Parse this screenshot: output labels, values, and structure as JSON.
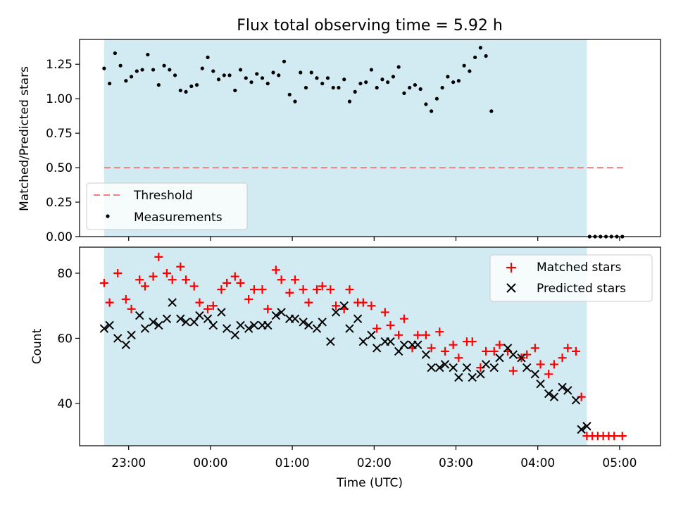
{
  "chart_data": [
    {
      "type": "scatter",
      "title": "Flux total observing time = 5.92 h",
      "xlabel": "",
      "ylabel": "Matched/Predicted stars",
      "ylim": [
        0,
        1.43
      ],
      "yticks": [
        "0.00",
        "0.25",
        "0.50",
        "0.75",
        "1.00",
        "1.25"
      ],
      "xlim_hours": [
        22.4,
        29.5
      ],
      "shaded_span": [
        "22:42",
        "04:36"
      ],
      "shaded_color": "#add8e6",
      "threshold": {
        "name": "Threshold",
        "value": 0.5,
        "x": [
          "22:42",
          "05:03"
        ],
        "color": "#f08080",
        "style": "dashed"
      },
      "series": [
        {
          "name": "Measurements",
          "marker": "dot",
          "color": "#000000",
          "points": [
            [
              "22:42",
              1.22
            ],
            [
              "22:46",
              1.11
            ],
            [
              "22:50",
              1.33
            ],
            [
              "22:54",
              1.24
            ],
            [
              "22:58",
              1.13
            ],
            [
              "23:02",
              1.16
            ],
            [
              "23:06",
              1.2
            ],
            [
              "23:10",
              1.21
            ],
            [
              "23:14",
              1.32
            ],
            [
              "23:18",
              1.21
            ],
            [
              "23:22",
              1.1
            ],
            [
              "23:26",
              1.24
            ],
            [
              "23:30",
              1.21
            ],
            [
              "23:34",
              1.17
            ],
            [
              "23:38",
              1.06
            ],
            [
              "23:42",
              1.05
            ],
            [
              "23:46",
              1.09
            ],
            [
              "23:50",
              1.1
            ],
            [
              "23:54",
              1.22
            ],
            [
              "23:58",
              1.3
            ],
            [
              "00:02",
              1.2
            ],
            [
              "00:06",
              1.14
            ],
            [
              "00:10",
              1.17
            ],
            [
              "00:14",
              1.17
            ],
            [
              "00:18",
              1.06
            ],
            [
              "00:22",
              1.21
            ],
            [
              "00:26",
              1.15
            ],
            [
              "00:30",
              1.12
            ],
            [
              "00:34",
              1.18
            ],
            [
              "00:38",
              1.15
            ],
            [
              "00:42",
              1.11
            ],
            [
              "00:46",
              1.19
            ],
            [
              "00:50",
              1.17
            ],
            [
              "00:54",
              1.27
            ],
            [
              "00:58",
              1.03
            ],
            [
              "01:02",
              0.98
            ],
            [
              "01:06",
              1.19
            ],
            [
              "01:10",
              1.08
            ],
            [
              "01:14",
              1.19
            ],
            [
              "01:18",
              1.15
            ],
            [
              "01:22",
              1.11
            ],
            [
              "01:26",
              1.15
            ],
            [
              "01:30",
              1.08
            ],
            [
              "01:34",
              1.08
            ],
            [
              "01:38",
              1.14
            ],
            [
              "01:42",
              0.98
            ],
            [
              "01:46",
              1.05
            ],
            [
              "01:50",
              1.11
            ],
            [
              "01:54",
              1.12
            ],
            [
              "01:58",
              1.21
            ],
            [
              "02:02",
              1.08
            ],
            [
              "02:06",
              1.14
            ],
            [
              "02:10",
              1.12
            ],
            [
              "02:14",
              1.16
            ],
            [
              "02:18",
              1.23
            ],
            [
              "02:22",
              1.04
            ],
            [
              "02:26",
              1.08
            ],
            [
              "02:30",
              1.1
            ],
            [
              "02:34",
              1.07
            ],
            [
              "02:38",
              0.96
            ],
            [
              "02:42",
              0.91
            ],
            [
              "02:46",
              1.0
            ],
            [
              "02:50",
              1.08
            ],
            [
              "02:54",
              1.16
            ],
            [
              "02:58",
              1.12
            ],
            [
              "03:02",
              1.13
            ],
            [
              "03:06",
              1.24
            ],
            [
              "03:10",
              1.2
            ],
            [
              "03:14",
              1.3
            ],
            [
              "03:18",
              1.37
            ],
            [
              "03:22",
              1.31
            ],
            [
              "03:26",
              0.91
            ],
            [
              "04:38",
              0.0
            ],
            [
              "04:42",
              0.0
            ],
            [
              "04:46",
              0.0
            ],
            [
              "04:50",
              0.0
            ],
            [
              "04:54",
              0.0
            ],
            [
              "04:58",
              0.0
            ],
            [
              "05:02",
              0.0
            ]
          ]
        }
      ],
      "legend": {
        "position": "lower-left",
        "entries": [
          "Threshold",
          "Measurements"
        ]
      }
    },
    {
      "type": "scatter",
      "title": "",
      "xlabel": "Time (UTC)",
      "ylabel": "Count",
      "ylim": [
        27,
        88
      ],
      "yticks": [
        "40",
        "60",
        "80"
      ],
      "xticks": [
        "23:00",
        "00:00",
        "01:00",
        "02:00",
        "03:00",
        "04:00",
        "05:00"
      ],
      "xlim_hours": [
        22.4,
        29.5
      ],
      "shaded_span": [
        "22:42",
        "04:36"
      ],
      "shaded_color": "#add8e6",
      "series": [
        {
          "name": "Matched stars",
          "marker": "plus",
          "color": "#ff0000",
          "points": [
            [
              "22:42",
              77
            ],
            [
              "22:46",
              71
            ],
            [
              "22:52",
              80
            ],
            [
              "22:58",
              72
            ],
            [
              "23:02",
              69
            ],
            [
              "23:08",
              78
            ],
            [
              "23:12",
              76
            ],
            [
              "23:18",
              79
            ],
            [
              "23:22",
              85
            ],
            [
              "23:28",
              80
            ],
            [
              "23:32",
              78
            ],
            [
              "23:38",
              82
            ],
            [
              "23:42",
              78
            ],
            [
              "23:48",
              76
            ],
            [
              "23:52",
              71
            ],
            [
              "23:58",
              69
            ],
            [
              "00:02",
              70
            ],
            [
              "00:08",
              75
            ],
            [
              "00:12",
              77
            ],
            [
              "00:18",
              79
            ],
            [
              "00:22",
              77
            ],
            [
              "00:28",
              72
            ],
            [
              "00:32",
              75
            ],
            [
              "00:38",
              75
            ],
            [
              "00:42",
              69
            ],
            [
              "00:48",
              81
            ],
            [
              "00:52",
              78
            ],
            [
              "00:58",
              74
            ],
            [
              "01:02",
              78
            ],
            [
              "01:08",
              75
            ],
            [
              "01:12",
              71
            ],
            [
              "01:18",
              75
            ],
            [
              "01:22",
              76
            ],
            [
              "01:28",
              75
            ],
            [
              "01:32",
              70
            ],
            [
              "01:38",
              69
            ],
            [
              "01:42",
              75
            ],
            [
              "01:48",
              71
            ],
            [
              "01:52",
              71
            ],
            [
              "01:58",
              70
            ],
            [
              "02:02",
              63
            ],
            [
              "02:08",
              68
            ],
            [
              "02:12",
              64
            ],
            [
              "02:18",
              61
            ],
            [
              "02:22",
              66
            ],
            [
              "02:28",
              57
            ],
            [
              "02:32",
              61
            ],
            [
              "02:38",
              61
            ],
            [
              "02:42",
              57
            ],
            [
              "02:48",
              62
            ],
            [
              "02:52",
              56
            ],
            [
              "02:58",
              58
            ],
            [
              "03:02",
              54
            ],
            [
              "03:08",
              59
            ],
            [
              "03:12",
              59
            ],
            [
              "03:18",
              51
            ],
            [
              "03:22",
              56
            ],
            [
              "03:28",
              56
            ],
            [
              "03:32",
              58
            ],
            [
              "03:38",
              56
            ],
            [
              "03:42",
              50
            ],
            [
              "03:48",
              54
            ],
            [
              "03:52",
              55
            ],
            [
              "03:58",
              57
            ],
            [
              "04:02",
              52
            ],
            [
              "04:08",
              49
            ],
            [
              "04:12",
              52
            ],
            [
              "04:18",
              54
            ],
            [
              "04:22",
              57
            ],
            [
              "04:28",
              56
            ],
            [
              "04:32",
              42
            ],
            [
              "04:36",
              30
            ],
            [
              "04:40",
              30
            ],
            [
              "04:44",
              30
            ],
            [
              "04:48",
              30
            ],
            [
              "04:52",
              30
            ],
            [
              "04:56",
              30
            ],
            [
              "05:02",
              30
            ]
          ]
        },
        {
          "name": "Predicted stars",
          "marker": "x",
          "color": "#000000",
          "points": [
            [
              "22:42",
              63
            ],
            [
              "22:46",
              64
            ],
            [
              "22:52",
              60
            ],
            [
              "22:58",
              58
            ],
            [
              "23:02",
              61
            ],
            [
              "23:08",
              67
            ],
            [
              "23:12",
              63
            ],
            [
              "23:18",
              65
            ],
            [
              "23:22",
              64
            ],
            [
              "23:28",
              66
            ],
            [
              "23:32",
              71
            ],
            [
              "23:38",
              66
            ],
            [
              "23:42",
              65
            ],
            [
              "23:48",
              65
            ],
            [
              "23:52",
              67
            ],
            [
              "23:58",
              66
            ],
            [
              "00:02",
              64
            ],
            [
              "00:08",
              68
            ],
            [
              "00:12",
              63
            ],
            [
              "00:18",
              61
            ],
            [
              "00:22",
              64
            ],
            [
              "00:28",
              63
            ],
            [
              "00:32",
              64
            ],
            [
              "00:38",
              64
            ],
            [
              "00:42",
              64
            ],
            [
              "00:48",
              67
            ],
            [
              "00:52",
              68
            ],
            [
              "00:58",
              66
            ],
            [
              "01:02",
              66
            ],
            [
              "01:08",
              65
            ],
            [
              "01:12",
              64
            ],
            [
              "01:18",
              63
            ],
            [
              "01:22",
              65
            ],
            [
              "01:28",
              59
            ],
            [
              "01:32",
              68
            ],
            [
              "01:38",
              70
            ],
            [
              "01:42",
              63
            ],
            [
              "01:48",
              66
            ],
            [
              "01:52",
              59
            ],
            [
              "01:58",
              61
            ],
            [
              "02:02",
              57
            ],
            [
              "02:08",
              59
            ],
            [
              "02:12",
              59
            ],
            [
              "02:18",
              56
            ],
            [
              "02:22",
              58
            ],
            [
              "02:28",
              58
            ],
            [
              "02:32",
              58
            ],
            [
              "02:38",
              55
            ],
            [
              "02:42",
              51
            ],
            [
              "02:48",
              51
            ],
            [
              "02:52",
              52
            ],
            [
              "02:58",
              51
            ],
            [
              "03:02",
              48
            ],
            [
              "03:08",
              51
            ],
            [
              "03:12",
              48
            ],
            [
              "03:18",
              49
            ],
            [
              "03:22",
              52
            ],
            [
              "03:28",
              51
            ],
            [
              "03:32",
              54
            ],
            [
              "03:38",
              57
            ],
            [
              "03:42",
              55
            ],
            [
              "03:48",
              54
            ],
            [
              "03:52",
              51
            ],
            [
              "03:58",
              49
            ],
            [
              "04:02",
              46
            ],
            [
              "04:08",
              43
            ],
            [
              "04:12",
              42
            ],
            [
              "04:18",
              45
            ],
            [
              "04:22",
              44
            ],
            [
              "04:28",
              41
            ],
            [
              "04:32",
              32
            ],
            [
              "04:36",
              33
            ]
          ]
        }
      ],
      "legend": {
        "position": "upper-right",
        "entries": [
          "Matched stars",
          "Predicted stars"
        ]
      }
    }
  ]
}
